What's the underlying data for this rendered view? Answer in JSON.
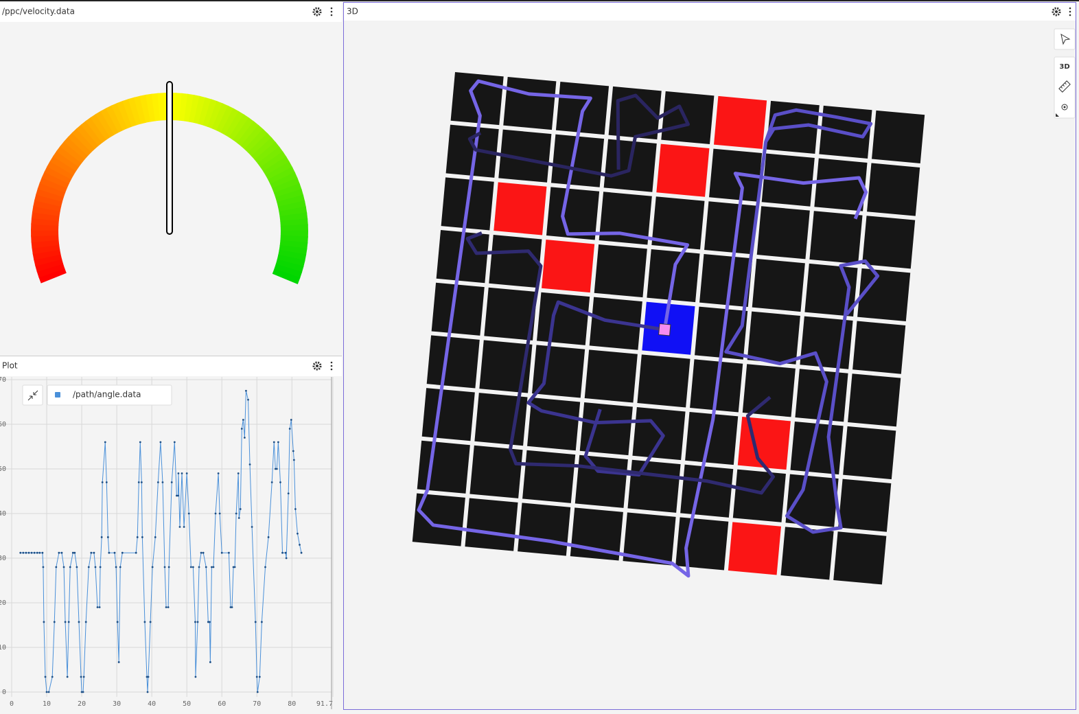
{
  "panels": {
    "velocity": "/ppc/velocity.data",
    "plot": "Plot",
    "scene": "3D"
  },
  "scene_toolbar": {
    "mode": "3D"
  },
  "chart_data": [
    {
      "type": "gauge",
      "range": [
        0,
        1
      ],
      "value": 0.5
    },
    {
      "type": "line",
      "x": [
        2.5,
        3.3,
        4.1,
        4.9,
        5.7,
        6.5,
        7.3,
        8.0,
        8.8,
        9.0,
        9.2,
        9.6,
        10.0,
        10.6,
        11.6,
        12.2,
        12.7,
        13.5,
        14.3,
        14.9,
        15.3,
        15.9,
        16.3,
        16.7,
        17.5,
        18.0,
        18.6,
        19.2,
        19.8,
        20.0,
        20.4,
        20.6,
        21.2,
        22.0,
        22.7,
        23.5,
        23.9,
        24.5,
        25.1,
        25.3,
        25.7,
        25.9,
        26.7,
        27.1,
        27.5,
        27.8,
        29.4,
        29.8,
        30.2,
        30.6,
        31.0,
        31.6,
        35.5,
        35.9,
        36.3,
        36.7,
        37.1,
        37.3,
        38.0,
        38.6,
        38.8,
        39.0,
        39.6,
        40.2,
        41.0,
        41.8,
        42.5,
        43.1,
        43.7,
        44.1,
        44.7,
        44.9,
        45.7,
        46.5,
        47.1,
        47.5,
        47.6,
        48.0,
        48.6,
        49.2,
        50.0,
        50.6,
        51.2,
        51.8,
        52.4,
        52.5,
        53.1,
        53.5,
        54.1,
        54.7,
        55.5,
        56.1,
        56.5,
        56.7,
        57.1,
        57.6,
        58.2,
        59.0,
        59.4,
        60.0,
        62.0,
        62.5,
        62.9,
        63.3,
        63.7,
        64.1,
        64.7,
        64.9,
        65.3,
        65.7,
        66.1,
        66.5,
        66.9,
        67.5,
        68.0,
        68.6,
        69.6,
        70.0,
        70.2,
        70.8,
        71.4,
        72.4,
        73.3,
        74.3,
        74.9,
        75.3,
        75.7,
        76.1,
        76.7,
        77.3,
        78.2,
        78.4,
        79.0,
        79.4,
        79.8,
        80.4,
        80.6,
        81.0,
        81.6,
        82.2,
        82.7
      ],
      "series": [
        {
          "name": "/path/angle.data",
          "color": "#4a90d9",
          "values": [
            31.2,
            31.2,
            31.2,
            31.2,
            31.2,
            31.2,
            31.2,
            31.2,
            31.2,
            28,
            15.7,
            3.4,
            0,
            0,
            3.4,
            15.7,
            28,
            31.2,
            31.2,
            28,
            15.7,
            3.4,
            15.7,
            28,
            31.2,
            31.2,
            28,
            15.7,
            3.4,
            0,
            0,
            3.4,
            15.7,
            28,
            31.2,
            31.2,
            28,
            19,
            19,
            28,
            34.7,
            47,
            56,
            47,
            34.7,
            31.2,
            31.2,
            28,
            15.7,
            6.7,
            28,
            31.2,
            31.2,
            34.7,
            47,
            56,
            47,
            34.7,
            15.7,
            3.4,
            0,
            3.4,
            15.7,
            28,
            34.7,
            47,
            56,
            47,
            28,
            19,
            19,
            28,
            47,
            56,
            44,
            44,
            49,
            37,
            49,
            37,
            49,
            40,
            28,
            28,
            15.7,
            3.4,
            15.7,
            28,
            31.2,
            31.2,
            28,
            15.7,
            15.7,
            6.7,
            28,
            28,
            40,
            49,
            40,
            31.2,
            31.2,
            19,
            19,
            28,
            28,
            40,
            49,
            39,
            41,
            59,
            61,
            57,
            67.5,
            65.5,
            51,
            37,
            15.7,
            3.4,
            0,
            3.4,
            15.7,
            28,
            34.7,
            47,
            56,
            50,
            50,
            56,
            47,
            31.2,
            31.2,
            30,
            44.5,
            59,
            61,
            54,
            52,
            41,
            35.5,
            33,
            31.2
          ]
        }
      ],
      "xlim": [
        0,
        91.7
      ],
      "ylim": [
        0,
        70
      ],
      "xticks": [
        0,
        10,
        20,
        30,
        40,
        50,
        60,
        70,
        80,
        91.7
      ],
      "yticks": [
        0,
        10,
        20,
        30,
        40,
        50,
        60,
        70
      ],
      "grid": true
    }
  ]
}
